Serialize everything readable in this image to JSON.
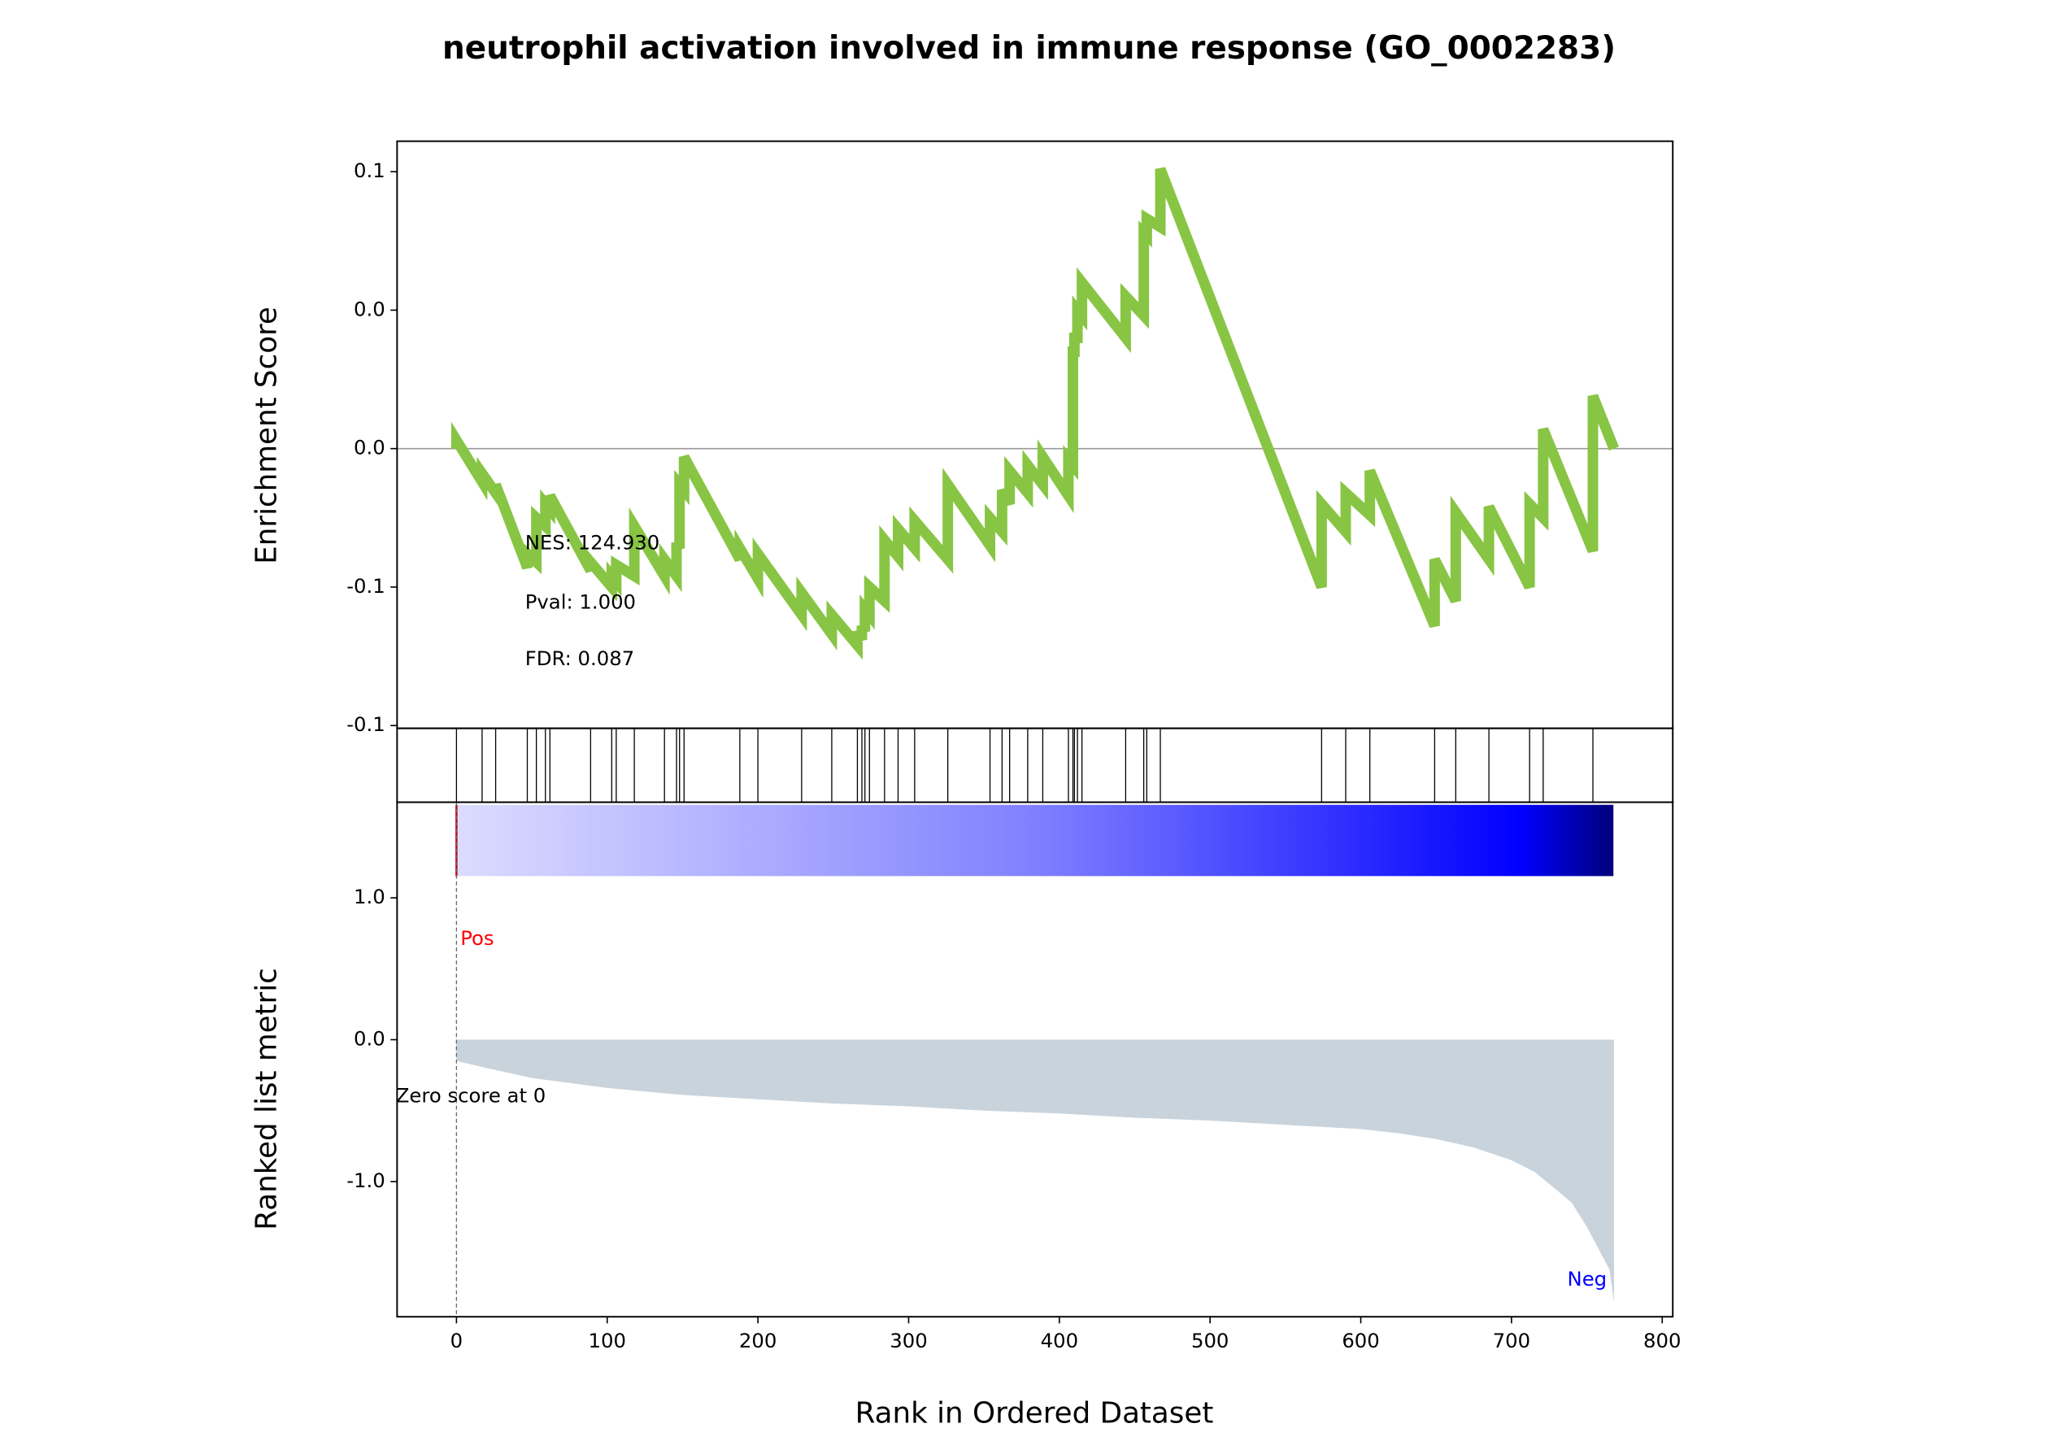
{
  "chart_data": [
    {
      "type": "line",
      "title": "neutrophil activation involved in immune response (GO_0002283)",
      "ylabel": "Enrichment Score",
      "x": [
        0,
        0,
        17,
        17,
        26,
        26,
        47,
        47,
        53,
        53,
        59,
        59,
        62,
        62,
        89,
        89,
        103,
        103,
        106,
        106,
        118,
        118,
        138,
        138,
        146,
        146,
        148,
        148,
        151,
        151,
        188,
        188,
        200,
        200,
        229,
        229,
        249,
        249,
        266,
        266,
        269,
        269,
        271,
        271,
        274,
        274,
        284,
        284,
        293,
        293,
        304,
        304,
        326,
        326,
        354,
        354,
        362,
        362,
        367,
        367,
        379,
        379,
        389,
        389,
        406,
        406,
        409,
        409,
        410,
        410,
        412,
        412,
        415,
        415,
        444,
        444,
        456,
        456,
        458,
        458,
        467,
        467,
        574,
        574,
        590,
        590,
        606,
        606,
        649,
        649,
        663,
        663,
        685,
        685,
        712,
        712,
        721,
        721,
        754,
        754,
        768
      ],
      "series": [
        {
          "color": "#88c544",
          "values": [
            0,
            0.003,
            -0.012,
            -0.009,
            -0.016,
            -0.013,
            -0.043,
            -0.038,
            -0.041,
            -0.025,
            -0.028,
            -0.02,
            -0.022,
            -0.017,
            -0.044,
            -0.041,
            -0.05,
            -0.046,
            -0.048,
            -0.042,
            -0.046,
            -0.028,
            -0.046,
            -0.04,
            -0.046,
            -0.034,
            -0.036,
            -0.013,
            -0.015,
            -0.003,
            -0.04,
            -0.036,
            -0.047,
            -0.038,
            -0.06,
            -0.052,
            -0.067,
            -0.06,
            -0.071,
            -0.066,
            -0.069,
            -0.064,
            -0.066,
            -0.058,
            -0.06,
            -0.05,
            -0.055,
            -0.033,
            -0.039,
            -0.029,
            -0.036,
            -0.026,
            -0.04,
            -0.013,
            -0.035,
            -0.025,
            -0.03,
            -0.015,
            -0.02,
            -0.008,
            -0.016,
            -0.006,
            -0.013,
            -0.003,
            -0.017,
            -0.004,
            -0.006,
            0.035,
            0.035,
            0.04,
            0.04,
            0.05,
            0.048,
            0.06,
            0.04,
            0.055,
            0.048,
            0.078,
            0.077,
            0.083,
            0.08,
            0.101,
            -0.05,
            -0.02,
            -0.03,
            -0.016,
            -0.024,
            -0.008,
            -0.064,
            -0.04,
            -0.055,
            -0.023,
            -0.04,
            -0.021,
            -0.05,
            -0.02,
            -0.025,
            0.007,
            -0.037,
            0.019,
            0
          ]
        }
      ],
      "annotations": [
        "NES: 124.930",
        "Pval: 1.000",
        "FDR: 0.087"
      ],
      "xlim": [
        -39.4,
        807
      ],
      "ylim": [
        -0.101,
        0.111
      ],
      "yticks": [
        {
          "value": 0.1,
          "label": "0.1"
        },
        {
          "value": 0.05,
          "label": "0.0"
        },
        {
          "value": 0,
          "label": "0.0"
        },
        {
          "value": -0.05,
          "label": "-0.1"
        },
        {
          "value": -0.1,
          "label": "-0.1"
        }
      ]
    },
    {
      "type": "rug",
      "x": [
        0,
        17,
        26,
        47,
        53,
        59,
        62,
        89,
        103,
        106,
        118,
        138,
        146,
        148,
        151,
        188,
        200,
        229,
        249,
        266,
        269,
        271,
        274,
        284,
        293,
        304,
        326,
        354,
        362,
        367,
        379,
        389,
        406,
        409,
        410,
        412,
        415,
        444,
        456,
        458,
        467,
        574,
        590,
        606,
        649,
        663,
        685,
        712,
        721,
        754
      ],
      "xlim": [
        -39.4,
        807
      ]
    },
    {
      "type": "area",
      "ylabel": "Ranked list metric",
      "xlabel": "Rank in Ordered Dataset",
      "color": "#c9d3dc",
      "x": [
        0,
        20,
        50,
        100,
        150,
        200,
        250,
        300,
        350,
        400,
        450,
        500,
        550,
        600,
        625,
        650,
        675,
        700,
        715,
        730,
        740,
        750,
        755,
        760,
        765,
        768
      ],
      "values": [
        -0.15,
        -0.2,
        -0.27,
        -0.34,
        -0.39,
        -0.42,
        -0.45,
        -0.47,
        -0.5,
        -0.52,
        -0.55,
        -0.57,
        -0.6,
        -0.63,
        -0.66,
        -0.7,
        -0.76,
        -0.85,
        -0.93,
        -1.06,
        -1.15,
        -1.32,
        -1.42,
        -1.52,
        -1.62,
        -1.85
      ],
      "annotations": {
        "pos": "Pos",
        "neg": "Neg",
        "zero": "Zero score at 0"
      },
      "xlim": [
        -39.4,
        807
      ],
      "ylim": [
        -1.953,
        1.674
      ],
      "xticks": [
        0,
        100,
        200,
        300,
        400,
        500,
        600,
        700,
        800
      ],
      "yticks": [
        {
          "value": 1,
          "label": "1.0"
        },
        {
          "value": 0,
          "label": "0.0"
        },
        {
          "value": -1,
          "label": "-1.0"
        }
      ]
    }
  ]
}
